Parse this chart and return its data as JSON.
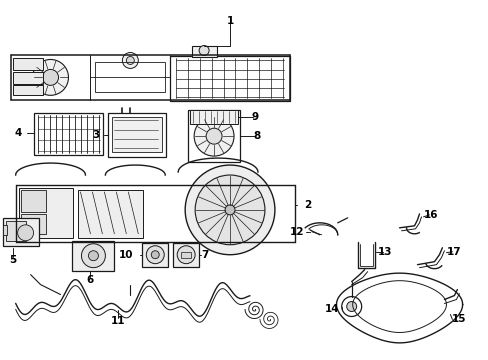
{
  "bg_color": "#ffffff",
  "line_color": "#1a1a1a",
  "figsize": [
    4.89,
    3.6
  ],
  "dpi": 100,
  "font_size": 7.5
}
